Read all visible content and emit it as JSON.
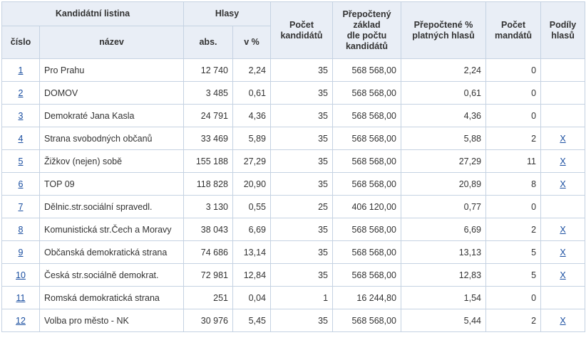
{
  "header": {
    "kandidatni_listina": "Kandidátní listina",
    "hlasy": "Hlasy",
    "cislo": "číslo",
    "nazev": "název",
    "abs": "abs.",
    "v_procentech": "v %",
    "pocet_kandidatu_1": "Počet",
    "pocet_kandidatu_2": "kandidátů",
    "prepocteny_zaklad_1": "Přepočtený",
    "prepocteny_zaklad_2": "základ",
    "prepocteny_zaklad_3": "dle počtu",
    "prepocteny_zaklad_4": "kandidátů",
    "prepoctene_proc_1": "Přepočtené %",
    "prepoctene_proc_2": "platných hlasů",
    "pocet_mandatu_1": "Počet",
    "pocet_mandatu_2": "mandátů",
    "podily_hlasu_1": "Podíly",
    "podily_hlasu_2": "hlasů"
  },
  "rows": [
    {
      "cislo": "1",
      "nazev": "Pro Prahu",
      "abs": "12 740",
      "proc": "2,24",
      "kandidatu": "35",
      "zaklad": "568 568,00",
      "prepoctene": "2,24",
      "mandatu": "0",
      "podily": ""
    },
    {
      "cislo": "2",
      "nazev": "DOMOV",
      "abs": "3 485",
      "proc": "0,61",
      "kandidatu": "35",
      "zaklad": "568 568,00",
      "prepoctene": "0,61",
      "mandatu": "0",
      "podily": ""
    },
    {
      "cislo": "3",
      "nazev": "Demokraté Jana Kasla",
      "abs": "24 791",
      "proc": "4,36",
      "kandidatu": "35",
      "zaklad": "568 568,00",
      "prepoctene": "4,36",
      "mandatu": "0",
      "podily": ""
    },
    {
      "cislo": "4",
      "nazev": "Strana svobodných občanů",
      "abs": "33 469",
      "proc": "5,89",
      "kandidatu": "35",
      "zaklad": "568 568,00",
      "prepoctene": "5,88",
      "mandatu": "2",
      "podily": "X"
    },
    {
      "cislo": "5",
      "nazev": "Žižkov (nejen) sobě",
      "abs": "155 188",
      "proc": "27,29",
      "kandidatu": "35",
      "zaklad": "568 568,00",
      "prepoctene": "27,29",
      "mandatu": "11",
      "podily": "X"
    },
    {
      "cislo": "6",
      "nazev": "TOP 09",
      "abs": "118 828",
      "proc": "20,90",
      "kandidatu": "35",
      "zaklad": "568 568,00",
      "prepoctene": "20,89",
      "mandatu": "8",
      "podily": "X"
    },
    {
      "cislo": "7",
      "nazev": "Dělnic.str.sociální spravedl.",
      "abs": "3 130",
      "proc": "0,55",
      "kandidatu": "25",
      "zaklad": "406 120,00",
      "prepoctene": "0,77",
      "mandatu": "0",
      "podily": ""
    },
    {
      "cislo": "8",
      "nazev": "Komunistická str.Čech a Moravy",
      "abs": "38 043",
      "proc": "6,69",
      "kandidatu": "35",
      "zaklad": "568 568,00",
      "prepoctene": "6,69",
      "mandatu": "2",
      "podily": "X"
    },
    {
      "cislo": "9",
      "nazev": "Občanská demokratická strana",
      "abs": "74 686",
      "proc": "13,14",
      "kandidatu": "35",
      "zaklad": "568 568,00",
      "prepoctene": "13,13",
      "mandatu": "5",
      "podily": "X"
    },
    {
      "cislo": "10",
      "nazev": "Česká str.sociálně demokrat.",
      "abs": "72 981",
      "proc": "12,84",
      "kandidatu": "35",
      "zaklad": "568 568,00",
      "prepoctene": "12,83",
      "mandatu": "5",
      "podily": "X"
    },
    {
      "cislo": "11",
      "nazev": "Romská demokratická strana",
      "abs": "251",
      "proc": "0,04",
      "kandidatu": "1",
      "zaklad": "16 244,80",
      "prepoctene": "1,54",
      "mandatu": "0",
      "podily": ""
    },
    {
      "cislo": "12",
      "nazev": "Volba pro město - NK",
      "abs": "30 976",
      "proc": "5,45",
      "kandidatu": "35",
      "zaklad": "568 568,00",
      "prepoctene": "5,44",
      "mandatu": "2",
      "podily": "X"
    }
  ]
}
